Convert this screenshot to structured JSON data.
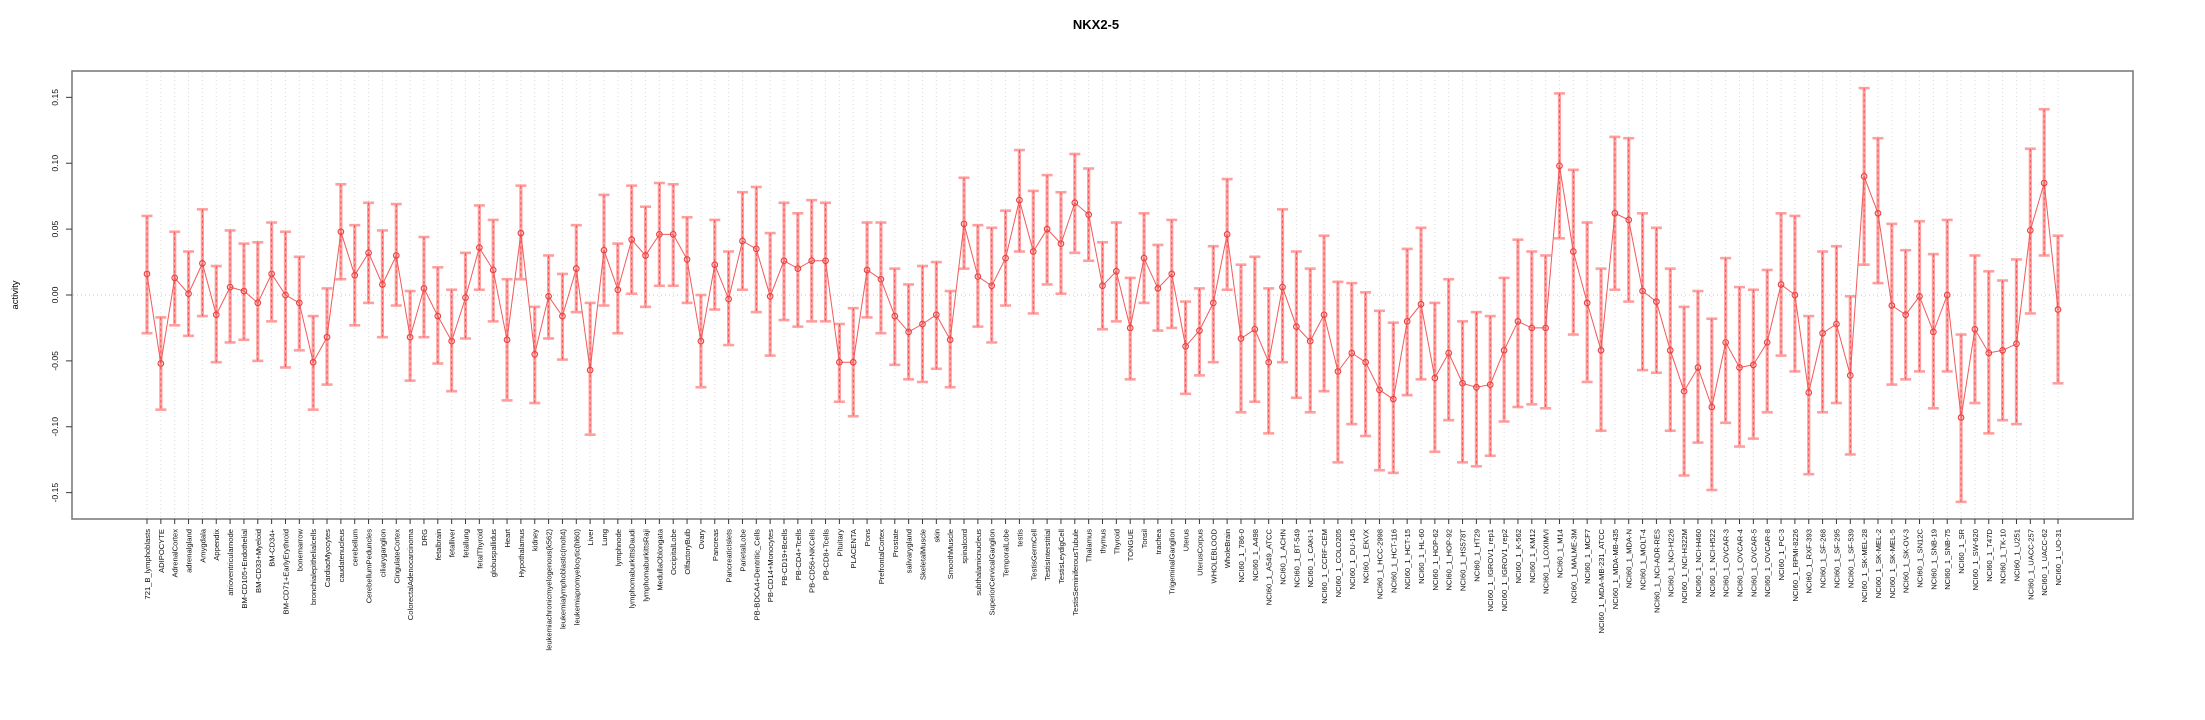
{
  "title": "NKX2-5",
  "axes": {
    "y_label": "activity"
  },
  "colors": {
    "error_bar": "#ff9e9e",
    "error_dash": "#f44545",
    "point": "#e84040",
    "series_line": "#f15a5a",
    "gridline": "#d9d9d9",
    "zero_line": "#c9c9c9",
    "frame": "#7d7d7d",
    "tick": "#3a3a3a",
    "label": "#111111"
  },
  "chart_data": {
    "type": "line",
    "subtype": "points-with-error-bars",
    "title": "NKX2-5",
    "xlabel": "",
    "ylabel": "activity",
    "ylim": [
      -0.17,
      0.17
    ],
    "yticks": [
      -0.15,
      -0.1,
      -0.05,
      0.0,
      0.05,
      0.1,
      0.15
    ],
    "grid": "vertical dotted gridline per category; dotted horizontal line at 0",
    "legend_position": "none",
    "categories": [
      "721_B_lymphoblasts",
      "ADIPOCYTE",
      "AdrenalCortex",
      "adrenalgland",
      "Amygdala",
      "Appendix",
      "atrioventricularnode",
      "BM-CD105+Endothelial",
      "BM-CD33+Myeloid",
      "BM-CD34+",
      "BM-CD71+EarlyErythroid",
      "bonemarrow",
      "bronchialepithelialcells",
      "CardiacMyocytes",
      "caudatenucleus",
      "cerebellum",
      "CerebellumPeduncles",
      "ciliaryganglion",
      "CingulateCortex",
      "ColorectalAdenocarcinoma",
      "DRG",
      "fetalbrain",
      "fetalliver",
      "fetallung",
      "fetalThyroid",
      "globuspallidus",
      "Heart",
      "Hypothalamus",
      "kidney",
      "leukemiachronicmyelogenous(k562)",
      "leukemialymphoblastic(molt4)",
      "leukemiapromyelocytic(hl60)",
      "Liver",
      "Lung",
      "lymphnode",
      "lymphomaburkittsDaudi",
      "lymphomaburkittsRaji",
      "MedullaOblongata",
      "OccipitalLobe",
      "OlfactoryBulb",
      "Ovary",
      "Pancreas",
      "PancreaticIslets",
      "ParietalLobe",
      "PB-BDCA4+Dentritic_Cells",
      "PB-CD14+Monocytes",
      "PB-CD19+Bcells",
      "PB-CD4+Tcells",
      "PB-CD56+NKCells",
      "PB-CD8+Tcells",
      "Pituitary",
      "PLACENTA",
      "Pons",
      "PrefrontalCortex",
      "Prostate",
      "salivarygland",
      "SkeletalMuscle",
      "skin",
      "SmoothMuscle",
      "spinalcord",
      "subthalamicnucleus",
      "SuperiorCervicalGanglion",
      "TemporalLobe",
      "testis",
      "TestisGermCell",
      "TestisInterstitial",
      "TestisLeydigCell",
      "TestisSeminiferousTubule",
      "Thalamus",
      "thymus",
      "Thyroid",
      "TONGUE",
      "Tonsil",
      "trachea",
      "TrigeminalGanglion",
      "Uterus",
      "UterusCorpus",
      "WHOLEBLOOD",
      "WholeBrain",
      "NCI60_1_786-0",
      "NCI60_1_A498",
      "NCI60_1_A549_ATCC",
      "NCI60_1_ACHN",
      "NCI60_1_BT-549",
      "NCI60_1_CAKI-1",
      "NCI60_1_CCRF-CEM",
      "NCI60_1_COLO205",
      "NCI60_1_DU-145",
      "NCI60_1_EKVX",
      "NCI60_1_HCC-2998",
      "NCI60_1_HCT-116",
      "NCI60_1_HCT-15",
      "NCI60_1_HL-60",
      "NCI60_1_HOP-62",
      "NCI60_1_HOP-92",
      "NCI60_1_HS578T",
      "NCI60_1_HT29",
      "NCI60_1_IGROV1_rep1",
      "NCI60_1_IGROV1_rep2",
      "NCI60_1_K-562",
      "NCI60_1_KM12",
      "NCI60_1_LOXIMVI",
      "NCI60_1_M14",
      "NCI60_1_MALME-3M",
      "NCI60_1_MCF7",
      "NCI60_1_MDA-MB-231_ATCC",
      "NCI60_1_MDA-MB-435",
      "NCI60_1_MDA-N",
      "NCI60_1_MOLT-4",
      "NCI60_1_NCI-ADR-RES",
      "NCI60_1_NCI-H226",
      "NCI60_1_NCI-H322M",
      "NCI60_1_NCI-H460",
      "NCI60_1_NCI-H522",
      "NCI60_1_OVCAR-3",
      "NCI60_1_OVCAR-4",
      "NCI60_1_OVCAR-5",
      "NCI60_1_OVCAR-8",
      "NCI60_1_PC-3",
      "NCI60_1_RPMI-8226",
      "NCI60_1_RXF-393",
      "NCI60_1_SF-268",
      "NCI60_1_SF-295",
      "NCI60_1_SF-539",
      "NCI60_1_SK-MEL-28",
      "NCI60_1_SK-MEL-2",
      "NCI60_1_SK-MEL-5",
      "NCI60_1_SK-OV-3",
      "NCI60_1_SN12C",
      "NCI60_1_SNB-19",
      "NCI60_1_SNB-75",
      "NCI60_1_SR",
      "NCI60_1_SW-620",
      "NCI60_1_T47D",
      "NCI60_1_TK-10",
      "NCI60_1_U251",
      "NCI60_1_UACC-257",
      "NCI60_1_UACC-62",
      "NCI60_1_UO-31"
    ],
    "series": [
      {
        "name": "activity",
        "values": [
          0.016,
          -0.052,
          0.013,
          0.001,
          0.024,
          -0.015,
          0.006,
          0.003,
          -0.006,
          0.016,
          0.0,
          -0.006,
          -0.051,
          -0.032,
          0.048,
          0.015,
          0.032,
          0.008,
          0.03,
          -0.032,
          0.005,
          -0.016,
          -0.035,
          -0.002,
          0.036,
          0.019,
          -0.034,
          0.047,
          -0.045,
          -0.001,
          -0.016,
          0.02,
          -0.057,
          0.034,
          0.004,
          0.042,
          0.03,
          0.046,
          0.046,
          0.027,
          -0.035,
          0.023,
          -0.003,
          0.041,
          0.035,
          -0.001,
          0.026,
          0.02,
          0.026,
          0.026,
          -0.051,
          -0.051,
          0.019,
          0.012,
          -0.016,
          -0.028,
          -0.022,
          -0.015,
          -0.034,
          0.054,
          0.014,
          0.007,
          0.028,
          0.072,
          0.033,
          0.05,
          0.039,
          0.07,
          0.061,
          0.007,
          0.018,
          -0.025,
          0.028,
          0.005,
          0.016,
          -0.039,
          -0.027,
          -0.006,
          0.046,
          -0.033,
          -0.026,
          -0.051,
          0.006,
          -0.024,
          -0.035,
          -0.015,
          -0.058,
          -0.044,
          -0.051,
          -0.072,
          -0.079,
          -0.02,
          -0.007,
          -0.063,
          -0.044,
          -0.067,
          -0.07,
          -0.068,
          -0.042,
          -0.02,
          -0.025,
          -0.025,
          0.098,
          0.033,
          -0.006,
          -0.042,
          0.062,
          0.057,
          0.003,
          -0.005,
          -0.042,
          -0.073,
          -0.055,
          -0.085,
          -0.036,
          -0.055,
          -0.053,
          -0.036,
          0.008,
          0.0,
          -0.074,
          -0.029,
          -0.022,
          -0.061,
          0.09,
          0.062,
          -0.008,
          -0.015,
          -0.001,
          -0.028,
          0.0,
          -0.093,
          -0.026,
          -0.044,
          -0.042,
          -0.037,
          0.049,
          0.085,
          -0.011
        ],
        "lower": [
          -0.029,
          -0.087,
          -0.023,
          -0.031,
          -0.016,
          -0.051,
          -0.036,
          -0.034,
          -0.05,
          -0.02,
          -0.055,
          -0.042,
          -0.087,
          -0.068,
          0.012,
          -0.023,
          -0.006,
          -0.032,
          -0.008,
          -0.065,
          -0.032,
          -0.052,
          -0.073,
          -0.033,
          0.004,
          -0.02,
          -0.08,
          0.012,
          -0.082,
          -0.033,
          -0.049,
          -0.013,
          -0.106,
          -0.008,
          -0.029,
          0.001,
          -0.009,
          0.007,
          0.007,
          -0.006,
          -0.07,
          -0.011,
          -0.038,
          0.004,
          -0.013,
          -0.046,
          -0.019,
          -0.024,
          -0.02,
          -0.02,
          -0.081,
          -0.092,
          -0.017,
          -0.029,
          -0.053,
          -0.064,
          -0.066,
          -0.056,
          -0.07,
          0.02,
          -0.024,
          -0.036,
          -0.008,
          0.033,
          -0.014,
          0.008,
          0.001,
          0.032,
          0.026,
          -0.026,
          -0.02,
          -0.064,
          -0.006,
          -0.027,
          -0.025,
          -0.075,
          -0.061,
          -0.051,
          0.004,
          -0.089,
          -0.081,
          -0.105,
          -0.051,
          -0.078,
          -0.089,
          -0.073,
          -0.127,
          -0.098,
          -0.107,
          -0.133,
          -0.135,
          -0.076,
          -0.064,
          -0.119,
          -0.095,
          -0.127,
          -0.13,
          -0.122,
          -0.096,
          -0.085,
          -0.083,
          -0.086,
          0.043,
          -0.03,
          -0.066,
          -0.103,
          0.004,
          -0.005,
          -0.057,
          -0.059,
          -0.103,
          -0.137,
          -0.112,
          -0.148,
          -0.097,
          -0.115,
          -0.109,
          -0.089,
          -0.046,
          -0.058,
          -0.136,
          -0.089,
          -0.082,
          -0.121,
          0.023,
          0.009,
          -0.068,
          -0.064,
          -0.058,
          -0.086,
          -0.058,
          -0.157,
          -0.082,
          -0.105,
          -0.095,
          -0.098,
          -0.014,
          0.03,
          -0.067
        ],
        "upper": [
          0.06,
          -0.017,
          0.048,
          0.033,
          0.065,
          0.022,
          0.049,
          0.039,
          0.04,
          0.055,
          0.048,
          0.029,
          -0.016,
          0.005,
          0.084,
          0.053,
          0.07,
          0.049,
          0.069,
          0.003,
          0.044,
          0.021,
          0.004,
          0.032,
          0.068,
          0.057,
          0.012,
          0.083,
          -0.009,
          0.03,
          0.016,
          0.053,
          -0.006,
          0.076,
          0.039,
          0.083,
          0.067,
          0.085,
          0.084,
          0.059,
          0.0,
          0.057,
          0.033,
          0.078,
          0.082,
          0.047,
          0.07,
          0.062,
          0.072,
          0.07,
          -0.022,
          -0.01,
          0.055,
          0.055,
          0.02,
          0.008,
          0.022,
          0.025,
          0.003,
          0.089,
          0.053,
          0.051,
          0.064,
          0.11,
          0.079,
          0.091,
          0.078,
          0.107,
          0.096,
          0.04,
          0.055,
          0.013,
          0.062,
          0.038,
          0.057,
          -0.005,
          0.005,
          0.037,
          0.088,
          0.023,
          0.029,
          0.005,
          0.065,
          0.033,
          0.02,
          0.045,
          0.01,
          0.009,
          0.002,
          -0.012,
          -0.021,
          0.035,
          0.051,
          -0.006,
          0.012,
          -0.02,
          -0.013,
          -0.016,
          0.013,
          0.042,
          0.033,
          0.03,
          0.153,
          0.095,
          0.055,
          0.02,
          0.12,
          0.119,
          0.062,
          0.051,
          0.02,
          -0.009,
          0.003,
          -0.018,
          0.028,
          0.006,
          0.004,
          0.019,
          0.062,
          0.06,
          -0.016,
          0.033,
          0.037,
          -0.001,
          0.157,
          0.119,
          0.054,
          0.034,
          0.056,
          0.031,
          0.057,
          -0.03,
          0.03,
          0.018,
          0.011,
          0.027,
          0.111,
          0.141,
          0.045
        ]
      }
    ]
  }
}
